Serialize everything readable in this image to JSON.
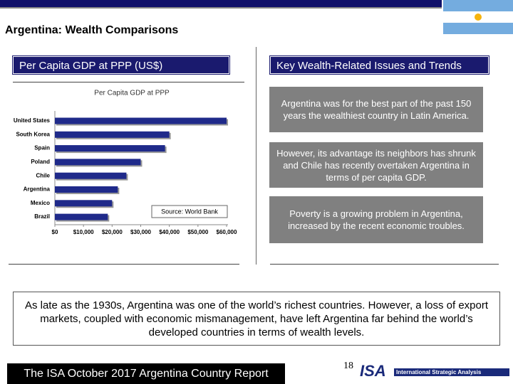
{
  "header": {
    "title": "Argentina: Wealth Comparisons"
  },
  "left_panel": {
    "heading": "Per Capita GDP at PPP (US$)"
  },
  "chart_data": {
    "type": "bar",
    "orientation": "horizontal",
    "title": "Per Capita GDP at PPP",
    "categories": [
      "United States",
      "South Korea",
      "Spain",
      "Poland",
      "Chile",
      "Argentina",
      "Mexico",
      "Brazil"
    ],
    "values": [
      60000,
      40000,
      38500,
      30000,
      25000,
      22000,
      20000,
      18500
    ],
    "color": "#1f2a8a",
    "xlim": [
      0,
      60000
    ],
    "xticks": [
      {
        "value": 0,
        "label": "$0"
      },
      {
        "value": 10000,
        "label": "$10,000"
      },
      {
        "value": 20000,
        "label": "$20,000"
      },
      {
        "value": 30000,
        "label": "$30,000"
      },
      {
        "value": 40000,
        "label": "$40,000"
      },
      {
        "value": 50000,
        "label": "$50,000"
      },
      {
        "value": 60000,
        "label": "$60,000"
      }
    ],
    "source": "Source: World Bank"
  },
  "right_panel": {
    "heading": "Key Wealth-Related Issues and Trends",
    "points": [
      "Argentina was for the best part of the past 150 years the wealthiest country in Latin America.",
      "However, its advantage its neighbors has shrunk and Chile has recently overtaken Argentina in terms of per capita GDP.",
      "Poverty is a growing problem in Argentina, increased by the recent economic troubles."
    ]
  },
  "summary": "As late as the 1930s, Argentina was one of the world’s richest countries.  However, a loss of export markets, coupled with economic mismanagement, have left Argentina far behind the world’s developed countries in terms of wealth levels.",
  "footer": {
    "report": "The ISA October 2017 Argentina Country Report",
    "page_number": "18",
    "logo": "ISA",
    "logo_name": "International Strategic Analysis"
  }
}
